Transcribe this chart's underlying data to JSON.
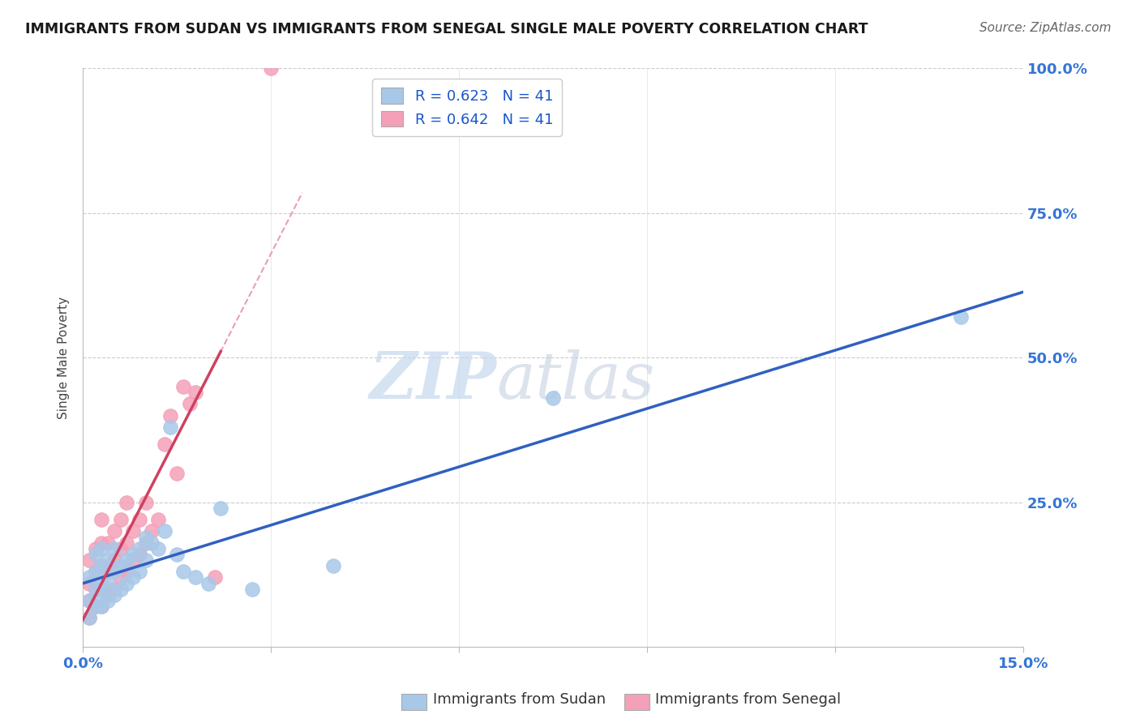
{
  "title": "IMMIGRANTS FROM SUDAN VS IMMIGRANTS FROM SENEGAL SINGLE MALE POVERTY CORRELATION CHART",
  "source": "Source: ZipAtlas.com",
  "ylabel": "Single Male Poverty",
  "xlim": [
    0.0,
    0.15
  ],
  "ylim": [
    0.0,
    1.0
  ],
  "sudan_R": 0.623,
  "sudan_N": 41,
  "senegal_R": 0.642,
  "senegal_N": 41,
  "sudan_color": "#a8c8e8",
  "senegal_color": "#f4a0b8",
  "sudan_line_color": "#3060c0",
  "senegal_line_color": "#d04060",
  "senegal_line_dash_color": "#e8a0b0",
  "sudan_x": [
    0.001,
    0.001,
    0.001,
    0.002,
    0.002,
    0.002,
    0.002,
    0.003,
    0.003,
    0.003,
    0.003,
    0.003,
    0.004,
    0.004,
    0.004,
    0.005,
    0.005,
    0.005,
    0.006,
    0.006,
    0.007,
    0.007,
    0.008,
    0.008,
    0.009,
    0.009,
    0.01,
    0.01,
    0.011,
    0.012,
    0.013,
    0.014,
    0.015,
    0.016,
    0.018,
    0.02,
    0.022,
    0.027,
    0.04,
    0.075,
    0.14
  ],
  "sudan_y": [
    0.05,
    0.08,
    0.12,
    0.07,
    0.1,
    0.13,
    0.16,
    0.07,
    0.09,
    0.11,
    0.14,
    0.17,
    0.08,
    0.11,
    0.15,
    0.09,
    0.13,
    0.17,
    0.1,
    0.14,
    0.11,
    0.15,
    0.12,
    0.16,
    0.13,
    0.17,
    0.15,
    0.19,
    0.18,
    0.17,
    0.2,
    0.38,
    0.16,
    0.13,
    0.12,
    0.11,
    0.24,
    0.1,
    0.14,
    0.43,
    0.57
  ],
  "senegal_x": [
    0.001,
    0.001,
    0.001,
    0.001,
    0.002,
    0.002,
    0.002,
    0.002,
    0.003,
    0.003,
    0.003,
    0.003,
    0.003,
    0.004,
    0.004,
    0.004,
    0.005,
    0.005,
    0.005,
    0.006,
    0.006,
    0.006,
    0.007,
    0.007,
    0.007,
    0.008,
    0.008,
    0.009,
    0.009,
    0.01,
    0.01,
    0.011,
    0.012,
    0.013,
    0.014,
    0.015,
    0.016,
    0.017,
    0.018,
    0.021,
    0.03
  ],
  "senegal_y": [
    0.05,
    0.08,
    0.11,
    0.15,
    0.07,
    0.1,
    0.13,
    0.17,
    0.07,
    0.1,
    0.14,
    0.18,
    0.22,
    0.09,
    0.13,
    0.18,
    0.1,
    0.15,
    0.2,
    0.12,
    0.17,
    0.22,
    0.13,
    0.18,
    0.25,
    0.15,
    0.2,
    0.16,
    0.22,
    0.18,
    0.25,
    0.2,
    0.22,
    0.35,
    0.4,
    0.3,
    0.45,
    0.42,
    0.44,
    0.12,
    1.0
  ],
  "watermark_zip": "ZIP",
  "watermark_atlas": "atlas",
  "background_color": "#ffffff",
  "grid_color": "#cccccc"
}
